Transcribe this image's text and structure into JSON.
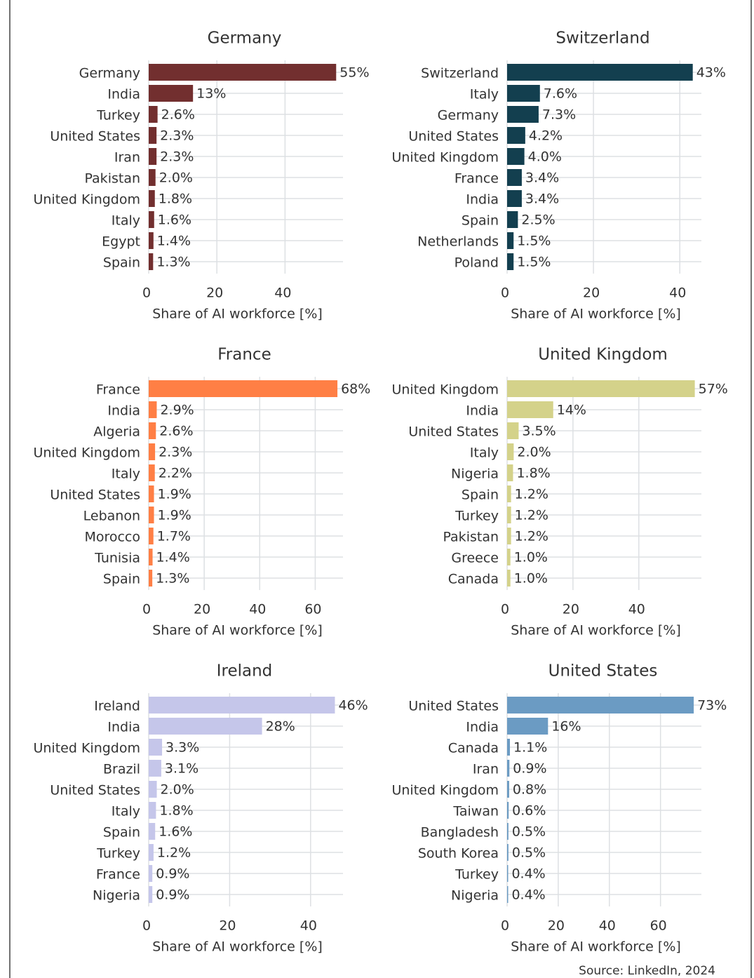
{
  "chart_data": [
    {
      "type": "barh",
      "title": "Germany",
      "xlabel": "Share of AI workforce [%]",
      "color": "#722f2f",
      "categories": [
        "Germany",
        "India",
        "Turkey",
        "United States",
        "Iran",
        "Pakistan",
        "United Kingdom",
        "Italy",
        "Egypt",
        "Spain"
      ],
      "values": [
        55,
        13,
        2.6,
        2.3,
        2.3,
        2.0,
        1.8,
        1.6,
        1.4,
        1.3
      ],
      "value_labels": [
        "55%",
        "13%",
        "2.6%",
        "2.3%",
        "2.3%",
        "2.0%",
        "1.8%",
        "1.6%",
        "1.4%",
        "1.3%"
      ],
      "xlim": [
        0,
        57
      ],
      "xticks": [
        0,
        20,
        40
      ],
      "grid": true
    },
    {
      "type": "barh",
      "title": "Switzerland",
      "xlabel": "Share of AI workforce [%]",
      "color": "#133f4f",
      "categories": [
        "Switzerland",
        "Italy",
        "Germany",
        "United States",
        "United Kingdom",
        "France",
        "India",
        "Spain",
        "Netherlands",
        "Poland"
      ],
      "values": [
        43,
        7.6,
        7.3,
        4.2,
        4.0,
        3.4,
        3.4,
        2.5,
        1.5,
        1.5
      ],
      "value_labels": [
        "43%",
        "7.6%",
        "7.3%",
        "4.2%",
        "4.0%",
        "3.4%",
        "3.4%",
        "2.5%",
        "1.5%",
        "1.5%"
      ],
      "xlim": [
        0,
        45
      ],
      "xticks": [
        0,
        20,
        40
      ],
      "grid": true
    },
    {
      "type": "barh",
      "title": "France",
      "xlabel": "Share of AI workforce [%]",
      "color": "#ff7f45",
      "categories": [
        "France",
        "India",
        "Algeria",
        "United Kingdom",
        "Italy",
        "United States",
        "Lebanon",
        "Morocco",
        "Tunisia",
        "Spain"
      ],
      "values": [
        68,
        2.9,
        2.6,
        2.3,
        2.2,
        1.9,
        1.9,
        1.7,
        1.4,
        1.3
      ],
      "value_labels": [
        "68%",
        "2.9%",
        "2.6%",
        "2.3%",
        "2.2%",
        "1.9%",
        "1.9%",
        "1.7%",
        "1.4%",
        "1.3%"
      ],
      "xlim": [
        0,
        70
      ],
      "xticks": [
        0,
        20,
        40,
        60
      ],
      "grid": true
    },
    {
      "type": "barh",
      "title": "United Kingdom",
      "xlabel": "Share of AI workforce [%]",
      "color": "#d4d28a",
      "categories": [
        "United Kingdom",
        "India",
        "United States",
        "Italy",
        "Nigeria",
        "Spain",
        "Turkey",
        "Pakistan",
        "Greece",
        "Canada"
      ],
      "values": [
        57,
        14,
        3.5,
        2.0,
        1.8,
        1.2,
        1.2,
        1.2,
        1.0,
        1.0
      ],
      "value_labels": [
        "57%",
        "14%",
        "3.5%",
        "2.0%",
        "1.8%",
        "1.2%",
        "1.2%",
        "1.2%",
        "1.0%",
        "1.0%"
      ],
      "xlim": [
        0,
        59
      ],
      "xticks": [
        0,
        20,
        40
      ],
      "grid": true
    },
    {
      "type": "barh",
      "title": "Ireland",
      "xlabel": "Share of AI workforce [%]",
      "color": "#c5c6ea",
      "categories": [
        "Ireland",
        "India",
        "United Kingdom",
        "Brazil",
        "United States",
        "Italy",
        "Spain",
        "Turkey",
        "France",
        "Nigeria"
      ],
      "values": [
        46,
        28,
        3.3,
        3.1,
        2.0,
        1.8,
        1.6,
        1.2,
        0.9,
        0.9
      ],
      "value_labels": [
        "46%",
        "28%",
        "3.3%",
        "3.1%",
        "2.0%",
        "1.8%",
        "1.6%",
        "1.2%",
        "0.9%",
        "0.9%"
      ],
      "xlim": [
        0,
        48
      ],
      "xticks": [
        0,
        20,
        40
      ],
      "grid": true
    },
    {
      "type": "barh",
      "title": "United States",
      "xlabel": "Share of AI workforce [%]",
      "color": "#6b9bc3",
      "categories": [
        "United States",
        "India",
        "Canada",
        "Iran",
        "United Kingdom",
        "Taiwan",
        "Bangladesh",
        "South Korea",
        "Turkey",
        "Nigeria"
      ],
      "values": [
        73,
        16,
        1.1,
        0.9,
        0.8,
        0.6,
        0.5,
        0.5,
        0.4,
        0.4
      ],
      "value_labels": [
        "73%",
        "16%",
        "1.1%",
        "0.9%",
        "0.8%",
        "0.6%",
        "0.5%",
        "0.5%",
        "0.4%",
        "0.4%"
      ],
      "xlim": [
        0,
        76
      ],
      "xticks": [
        0,
        20,
        40,
        60
      ],
      "grid": true
    }
  ],
  "source": "Source: LinkedIn, 2024"
}
